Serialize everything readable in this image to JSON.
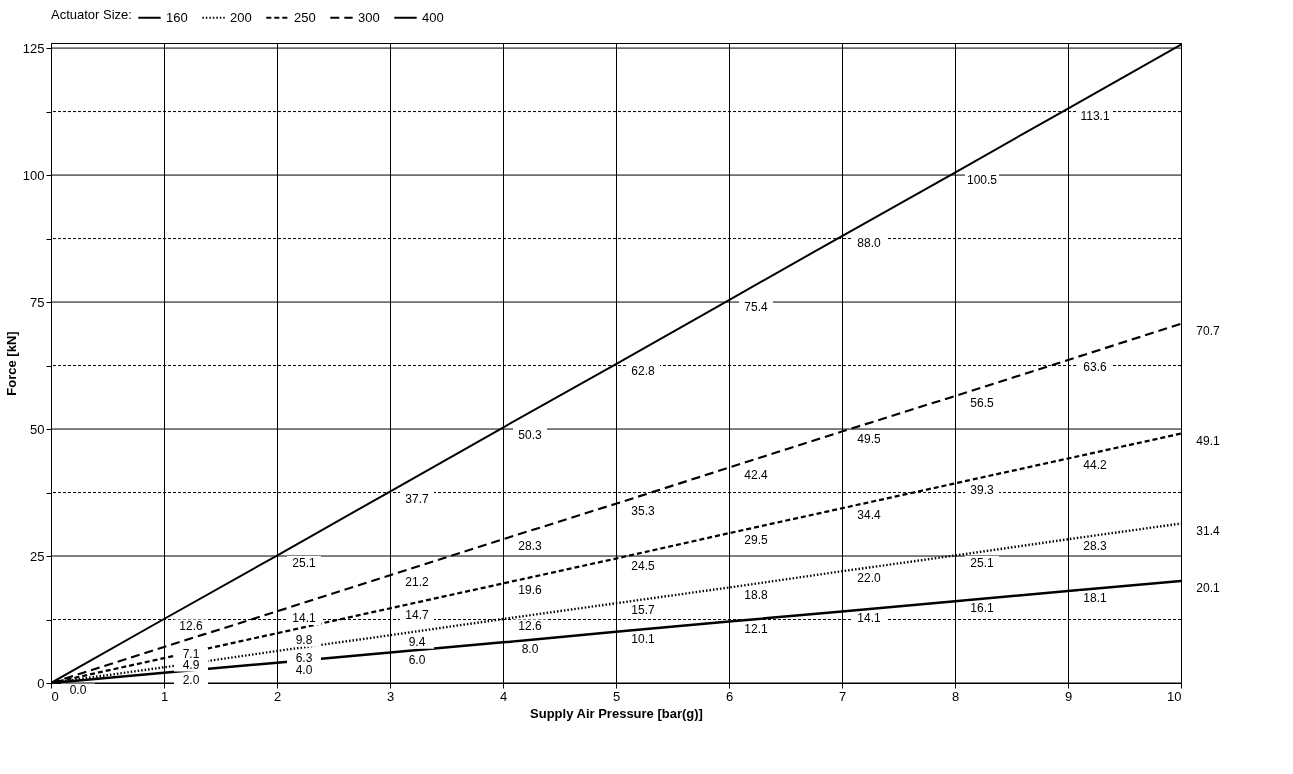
{
  "chart_data": {
    "type": "line",
    "xlabel": "Supply Air Pressure  [bar(g)]",
    "ylabel": "Force [kN]",
    "legend_title": "Actuator Size:",
    "legend": "top",
    "grid": true,
    "x": [
      0,
      1,
      2,
      3,
      4,
      5,
      6,
      7,
      8,
      9,
      10
    ],
    "xlim": [
      0,
      10
    ],
    "xticks": [
      0,
      1,
      2,
      3,
      4,
      5,
      6,
      7,
      8,
      9,
      10
    ],
    "ylim": [
      0,
      126
    ],
    "yticks": [
      0,
      {
        "value": 12.5,
        "label": null
      },
      25,
      {
        "value": 37.5,
        "label": null
      },
      50,
      {
        "value": 62.5,
        "label": null
      },
      75,
      {
        "value": 87.5,
        "label": null
      },
      100,
      {
        "value": 112.5,
        "label": null
      },
      125
    ],
    "series": [
      {
        "name": "160",
        "color": "#000000",
        "line_style": "solid",
        "values": [
          0,
          2.0,
          4.0,
          6.0,
          8.0,
          10.1,
          12.1,
          14.1,
          16.1,
          18.1,
          20.1
        ],
        "value_labels": [
          null,
          "2.0",
          "4.0",
          "6.0",
          "8.0",
          "10.1",
          "12.1",
          "14.1",
          "16.1",
          "18.1",
          "20.1"
        ]
      },
      {
        "name": "200",
        "color": "#000000",
        "line_style": "dotted",
        "values": [
          0,
          3.1,
          6.3,
          9.4,
          12.6,
          15.7,
          18.8,
          22.0,
          25.1,
          28.3,
          31.4
        ],
        "value_labels": [
          null,
          null,
          "6.3",
          "9.4",
          "12.6",
          "15.7",
          "18.8",
          "22.0",
          "25.1",
          "28.3",
          "31.4"
        ]
      },
      {
        "name": "250",
        "color": "#000000",
        "line_style": "dashed",
        "values": [
          0,
          4.9,
          9.8,
          14.7,
          19.6,
          24.5,
          29.5,
          34.4,
          39.3,
          44.2,
          49.1
        ],
        "value_labels": [
          null,
          "4.9",
          "9.8",
          "14.7",
          "19.6",
          "24.5",
          "29.5",
          "34.4",
          "39.3",
          "44.2",
          "49.1"
        ]
      },
      {
        "name": "300",
        "color": "#000000",
        "line_style": "longdash",
        "values": [
          0,
          7.1,
          14.1,
          21.2,
          28.3,
          35.3,
          42.4,
          49.5,
          56.5,
          63.6,
          70.7
        ],
        "value_labels": [
          null,
          "7.1",
          "14.1",
          "21.2",
          "28.3",
          "35.3",
          "42.4",
          "49.5",
          "56.5",
          "63.6",
          "70.7"
        ]
      },
      {
        "name": "400",
        "color": "#000000",
        "line_style": "solid",
        "values": [
          0,
          12.6,
          25.1,
          37.7,
          50.3,
          62.8,
          75.4,
          88.0,
          100.5,
          113.1,
          125.7
        ],
        "value_labels": [
          "0.0",
          "12.6",
          "25.1",
          "37.7",
          "50.3",
          "62.8",
          "75.4",
          "88.0",
          "100.5",
          "113.1",
          null
        ]
      }
    ]
  }
}
